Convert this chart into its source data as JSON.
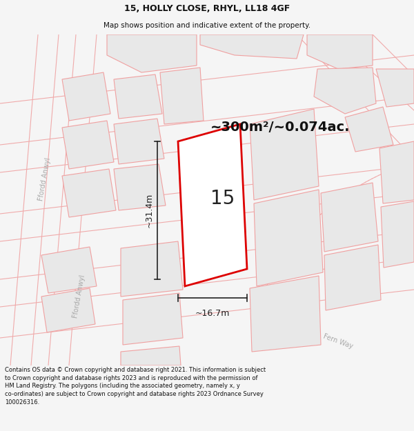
{
  "title": "15, HOLLY CLOSE, RHYL, LL18 4GF",
  "subtitle": "Map shows position and indicative extent of the property.",
  "area_text": "~300m²/~0.074ac.",
  "property_number": "15",
  "dim_width": "~16.7m",
  "dim_height": "~31.4m",
  "footer_text": "Contains OS data © Crown copyright and database right 2021. This information is subject to Crown copyright and database rights 2023 and is reproduced with the permission of HM Land Registry. The polygons (including the associated geometry, namely x, y co-ordinates) are subject to Crown copyright and database rights 2023 Ordnance Survey 100026316.",
  "bg_color": "#f5f5f5",
  "map_bg": "#f7f7f7",
  "block_color": "#e8e8e8",
  "block_edge_color": "#f0a0a0",
  "property_fill": "#ffffff",
  "property_edge": "#dd0000",
  "dim_color": "#222222",
  "title_color": "#111111",
  "footer_color": "#111111",
  "road_line_color": "#f0aaaa",
  "road_label_color": "#aaaaaa",
  "fern_way_color": "#cccccc"
}
